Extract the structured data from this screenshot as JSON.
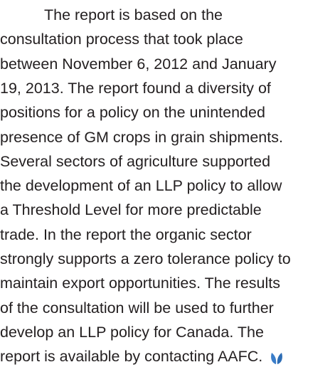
{
  "paragraph": {
    "lines": [
      "The report is based on the",
      "consultation process that took place",
      "between November 6, 2012 and January",
      "19, 2013. The report found a diversity of",
      "positions for a policy on the unintended",
      "presence of GM crops in grain shipments.",
      "Several sectors of agriculture supported",
      "the development of an LLP policy to allow",
      "a Threshold Level for more predictable",
      "trade. In the report the organic sector",
      "strongly supports a zero tolerance policy to",
      "maintain export opportunities. The results",
      "of the consultation will be used to further",
      "develop an LLP policy for Canada. The",
      "report is available by contacting AAFC."
    ]
  }
}
